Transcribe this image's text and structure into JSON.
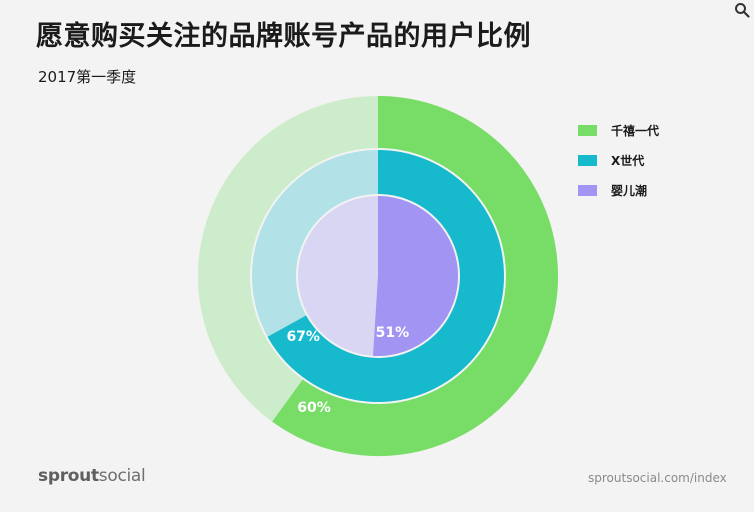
{
  "title": "愿意购买关注的品牌账号产品的用户比例",
  "subtitle": "2017第一季度",
  "brand": {
    "bold": "sprout",
    "regular": "social"
  },
  "source_url": "sproutsocial.com/index",
  "icons": {
    "corner": "search-icon"
  },
  "chart_data": {
    "type": "pie",
    "title": "愿意购买关注的品牌账号产品的用户比例",
    "subtitle": "2017第一季度",
    "legend_position": "right",
    "series": [
      {
        "name": "千禧一代",
        "value": 60,
        "label": "60%",
        "color": "#77dd66",
        "track_color": "#cdeccb"
      },
      {
        "name": "X世代",
        "value": 67,
        "label": "67%",
        "color": "#17b9cd",
        "track_color": "#b2e1e7"
      },
      {
        "name": "婴儿潮",
        "value": 51,
        "label": "51%",
        "color": "#a294f2",
        "track_color": "#d9d6f3"
      }
    ]
  }
}
